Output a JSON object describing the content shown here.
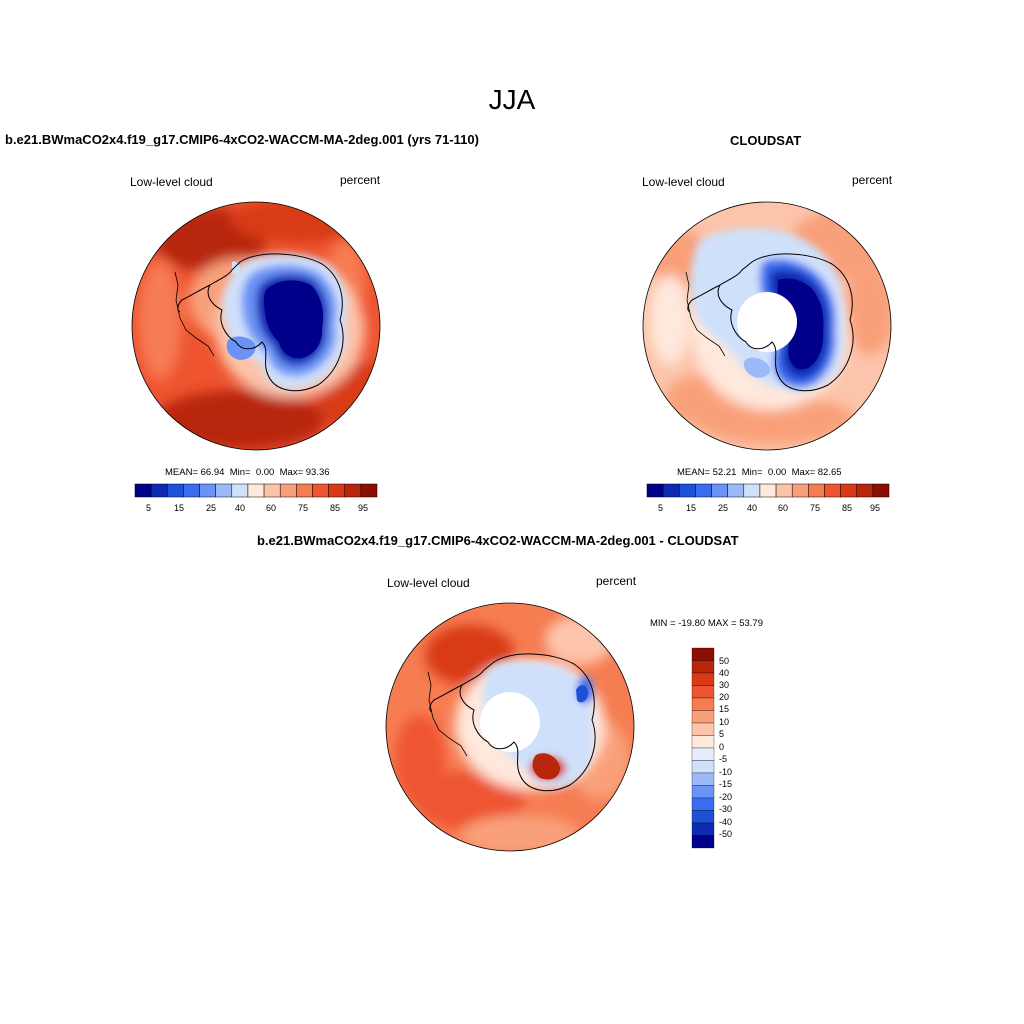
{
  "title": "JJA",
  "panels": [
    {
      "id": "model",
      "title": "b.e21.BWmaCO2x4.f19_g17.CMIP6-4xCO2-WACCM-MA-2deg.001 (yrs 71-110)",
      "left_label": "Low-level cloud",
      "right_label": "percent",
      "stats": {
        "mean_label": "MEAN=",
        "mean": "66.94",
        "min_label": "Min=",
        "min": "0.00",
        "max_label": "Max=",
        "max": "93.36"
      },
      "colorbar_ticks": [
        "5",
        "15",
        "25",
        "40",
        "60",
        "75",
        "85",
        "95"
      ]
    },
    {
      "id": "obs",
      "title": "CLOUDSAT",
      "left_label": "Low-level cloud",
      "right_label": "percent",
      "stats": {
        "mean_label": "MEAN=",
        "mean": "52.21",
        "min_label": "Min=",
        "min": "0.00",
        "max_label": "Max=",
        "max": "82.65"
      },
      "colorbar_ticks": [
        "5",
        "15",
        "25",
        "40",
        "60",
        "75",
        "85",
        "95"
      ]
    },
    {
      "id": "diff",
      "title": "b.e21.BWmaCO2x4.f19_g17.CMIP6-4xCO2-WACCM-MA-2deg.001 - CLOUDSAT",
      "left_label": "Low-level cloud",
      "right_label": "percent",
      "stats_text": "MIN = -19.80 MAX =  53.79",
      "colorbar_ticks": [
        "50",
        "40",
        "30",
        "20",
        "15",
        "10",
        "5",
        "0",
        "-5",
        "-10",
        "-15",
        "-20",
        "-30",
        "-40",
        "-50"
      ]
    }
  ],
  "colors": {
    "abs_scale": [
      "#00008b",
      "#0d2ab0",
      "#1e50d8",
      "#3a6cf0",
      "#6a93f5",
      "#9dbaf8",
      "#cfe0fb",
      "#ffe8dc",
      "#fcc4aa",
      "#f9a07a",
      "#f67c52",
      "#ee5430",
      "#d83a18",
      "#b8260c",
      "#8b0e00"
    ],
    "diff_scale": [
      "#8b0e00",
      "#b8260c",
      "#d83a18",
      "#ee5430",
      "#f67c52",
      "#f9a07a",
      "#fcc4aa",
      "#ffe8dc",
      "#e6eefc",
      "#cfe0fb",
      "#9dbaf8",
      "#6a93f5",
      "#3a6cf0",
      "#1e50d8",
      "#0d2ab0",
      "#00008b"
    ]
  }
}
